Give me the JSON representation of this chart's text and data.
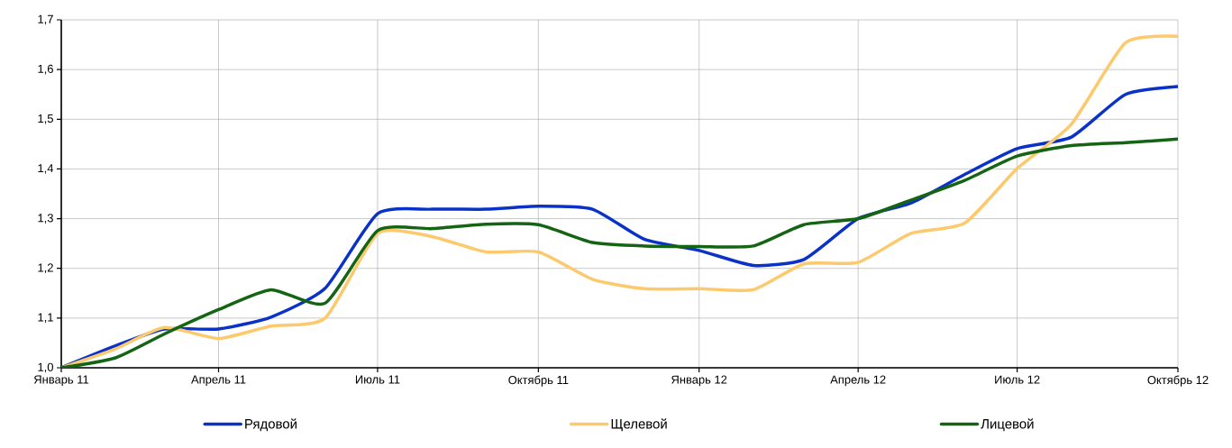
{
  "chart_data": {
    "type": "line",
    "x": [
      "2011-01",
      "2011-02",
      "2011-03",
      "2011-04",
      "2011-05",
      "2011-06",
      "2011-07",
      "2011-08",
      "2011-09",
      "2011-10",
      "2011-11",
      "2011-12",
      "2012-01",
      "2012-02",
      "2012-03",
      "2012-04",
      "2012-05",
      "2012-06",
      "2012-07",
      "2012-08",
      "2012-09",
      "2012-10"
    ],
    "series": [
      {
        "name": "Рядовой",
        "color": "#0a32c8",
        "values": [
          1.0,
          1.044,
          1.078,
          1.078,
          1.102,
          1.16,
          1.31,
          1.319,
          1.319,
          1.325,
          1.319,
          1.258,
          1.236,
          1.206,
          1.218,
          1.3,
          1.331,
          1.389,
          1.441,
          1.464,
          1.55,
          1.566
        ]
      },
      {
        "name": "Щелевой",
        "color": "#fcc96c",
        "values": [
          1.0,
          1.038,
          1.081,
          1.059,
          1.084,
          1.1,
          1.27,
          1.264,
          1.233,
          1.233,
          1.178,
          1.159,
          1.159,
          1.157,
          1.209,
          1.212,
          1.27,
          1.291,
          1.401,
          1.49,
          1.654,
          1.667
        ]
      },
      {
        "name": "Лицевой",
        "color": "#146414",
        "values": [
          1.0,
          1.02,
          1.068,
          1.117,
          1.157,
          1.13,
          1.276,
          1.28,
          1.289,
          1.288,
          1.252,
          1.245,
          1.244,
          1.245,
          1.288,
          1.3,
          1.337,
          1.377,
          1.426,
          1.447,
          1.453,
          1.46
        ]
      }
    ],
    "xlim": [
      "2011-01",
      "2012-10"
    ],
    "xticks": [
      {
        "value": "2011-01",
        "label": "Январь 11"
      },
      {
        "value": "2011-04",
        "label": "Апрель 11"
      },
      {
        "value": "2011-07",
        "label": "Июль 11"
      },
      {
        "value": "2011-10",
        "label": "Октябрь 11"
      },
      {
        "value": "2012-01",
        "label": "Январь 12"
      },
      {
        "value": "2012-04",
        "label": "Апрель 12"
      },
      {
        "value": "2012-07",
        "label": "Июль 12"
      },
      {
        "value": "2012-10",
        "label": "Октябрь 12"
      }
    ],
    "ylim": [
      1.0,
      1.7
    ],
    "yticks": [
      {
        "value": 1.0,
        "label": "1,0"
      },
      {
        "value": 1.1,
        "label": "1,1"
      },
      {
        "value": 1.2,
        "label": "1,2"
      },
      {
        "value": 1.3,
        "label": "1,3"
      },
      {
        "value": 1.4,
        "label": "1,4"
      },
      {
        "value": 1.5,
        "label": "1,5"
      },
      {
        "value": 1.6,
        "label": "1,6"
      },
      {
        "value": 1.7,
        "label": "1,7"
      }
    ],
    "grid": true,
    "legend": "bottom",
    "marker": "none",
    "line_style": "solid"
  }
}
